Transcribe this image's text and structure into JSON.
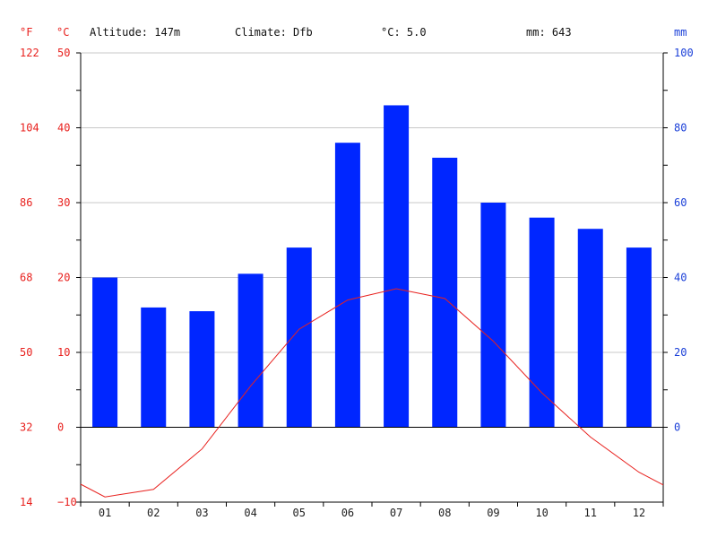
{
  "header": {
    "altitude": "Altitude: 147m",
    "climate": "Climate: Dfb",
    "avg_temp": "°C: 5.0",
    "precip": "mm: 643"
  },
  "units": {
    "fahrenheit": "°F",
    "celsius": "°C",
    "mm": "mm"
  },
  "colors": {
    "bars": "#0026ff",
    "temp_line": "#e8211e",
    "left_axis": "#e8211e",
    "right_axis": "#1a3fd8",
    "grid": "#c8c8c8"
  },
  "chart_data": {
    "type": "bar",
    "categories": [
      "01",
      "02",
      "03",
      "04",
      "05",
      "06",
      "07",
      "08",
      "09",
      "10",
      "11",
      "12"
    ],
    "series": [
      {
        "kind": "bar",
        "axis": "mm",
        "values": [
          40,
          32,
          31,
          41,
          48,
          76,
          86,
          72,
          60,
          56,
          53,
          48
        ]
      },
      {
        "kind": "line",
        "axis": "celsius",
        "values": [
          -9.3,
          -8.3,
          -2.9,
          5.5,
          13.1,
          17.0,
          18.5,
          17.2,
          11.5,
          4.6,
          -1.3,
          -6.0
        ]
      }
    ],
    "line_endpoints": {
      "start": -7.6,
      "end": -7.7
    },
    "celsius_ticks": [
      "50",
      "40",
      "30",
      "20",
      "10",
      "0",
      "−10"
    ],
    "fahrenheit_ticks": [
      "122",
      "104",
      "86",
      "68",
      "50",
      "32",
      "14"
    ],
    "mm_ticks": [
      "100",
      "80",
      "60",
      "40",
      "20",
      "0"
    ],
    "celsius_range": [
      -10,
      50
    ],
    "mm_range": [
      0,
      100
    ],
    "grid": true,
    "legend": "none"
  }
}
